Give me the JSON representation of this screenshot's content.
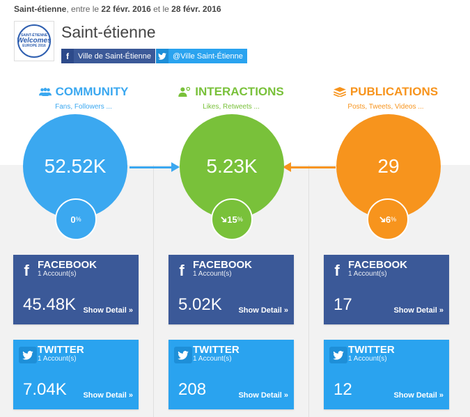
{
  "header": {
    "city": "Saint-étienne",
    "between": ", entre le ",
    "date_from": "22 févr. 2016",
    "and": " et le ",
    "date_to": "28 févr. 2016"
  },
  "brand": {
    "title": "Saint-étienne",
    "logo_top": "SAINT-ÉTIENNE",
    "logo_mid": "Welcomes",
    "logo_bot": "EUROPE 2016",
    "facebook_label": "Ville de Saint-Étienne",
    "twitter_label": "@Ville Saint-Étienne"
  },
  "colors": {
    "community": "#3ba8f0",
    "interactions": "#79c13a",
    "publications": "#f7941d",
    "facebook": "#3b5998",
    "twitter": "#2aa3ef"
  },
  "metrics": [
    {
      "key": "community",
      "title": "COMMUNITY",
      "subtitle": "Fans, Followers ...",
      "icon": "users-icon",
      "value": "52.52K",
      "change": "0",
      "change_trend": "none",
      "facebook": {
        "network": "FACEBOOK",
        "accounts": "1 Account(s)",
        "value": "45.48K",
        "detail": "Show Detail »"
      },
      "twitter": {
        "network": "TWITTER",
        "accounts": "1 Account(s)",
        "value": "7.04K",
        "detail": "Show Detail »"
      }
    },
    {
      "key": "interactions",
      "title": "INTERACTIONS",
      "subtitle": "Likes, Retweets ...",
      "icon": "user-interaction-icon",
      "value": "5.23K",
      "change": "15",
      "change_trend": "down",
      "facebook": {
        "network": "FACEBOOK",
        "accounts": "1 Account(s)",
        "value": "5.02K",
        "detail": "Show Detail »"
      },
      "twitter": {
        "network": "TWITTER",
        "accounts": "1 Account(s)",
        "value": "208",
        "detail": "Show Detail »"
      }
    },
    {
      "key": "publications",
      "title": "PUBLICATIONS",
      "subtitle": "Posts, Tweets, Videos ...",
      "icon": "stack-icon",
      "value": "29",
      "change": "6",
      "change_trend": "down",
      "facebook": {
        "network": "FACEBOOK",
        "accounts": "1 Account(s)",
        "value": "17",
        "detail": "Show Detail »"
      },
      "twitter": {
        "network": "TWITTER",
        "accounts": "1 Account(s)",
        "value": "12",
        "detail": "Show Detail »"
      }
    }
  ],
  "units": {
    "percent": "%"
  }
}
